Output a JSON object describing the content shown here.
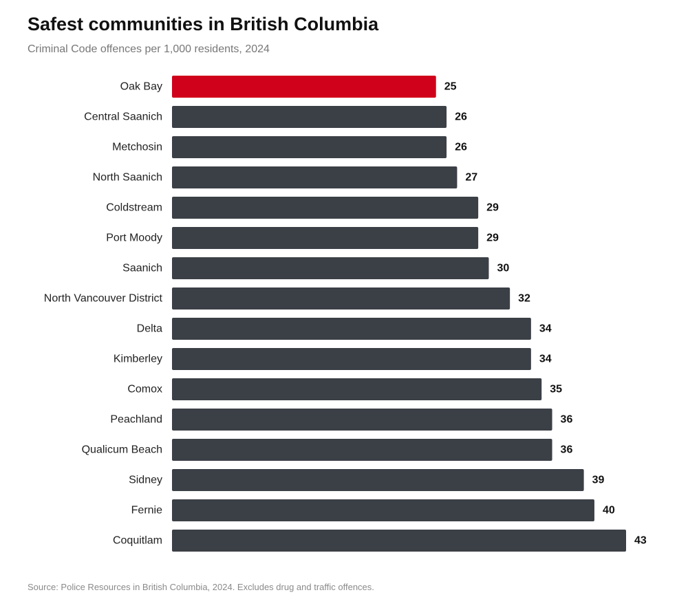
{
  "chart_data": {
    "type": "bar",
    "orientation": "horizontal",
    "title": "Safest communities in British Columbia",
    "subtitle": "Criminal Code offences per 1,000 residents, 2024",
    "xlabel": "",
    "ylabel": "",
    "xlim": [
      0,
      43
    ],
    "grid": false,
    "categories": [
      "Oak Bay",
      "Central Saanich",
      "Metchosin",
      "North Saanich",
      "Coldstream",
      "Port Moody",
      "Saanich",
      "North Vancouver District",
      "Delta",
      "Kimberley",
      "Comox",
      "Peachland",
      "Qualicum Beach",
      "Sidney",
      "Fernie",
      "Coquitlam"
    ],
    "values": [
      25,
      26,
      26,
      27,
      29,
      29,
      30,
      32,
      34,
      34,
      35,
      36,
      36,
      39,
      40,
      43
    ],
    "highlight_category": "Oak Bay",
    "colors": {
      "highlight": "#d0021b",
      "default": "#3b3f46"
    },
    "source": "Source: Police Resources in British Columbia, 2024. Excludes drug and traffic offences."
  }
}
